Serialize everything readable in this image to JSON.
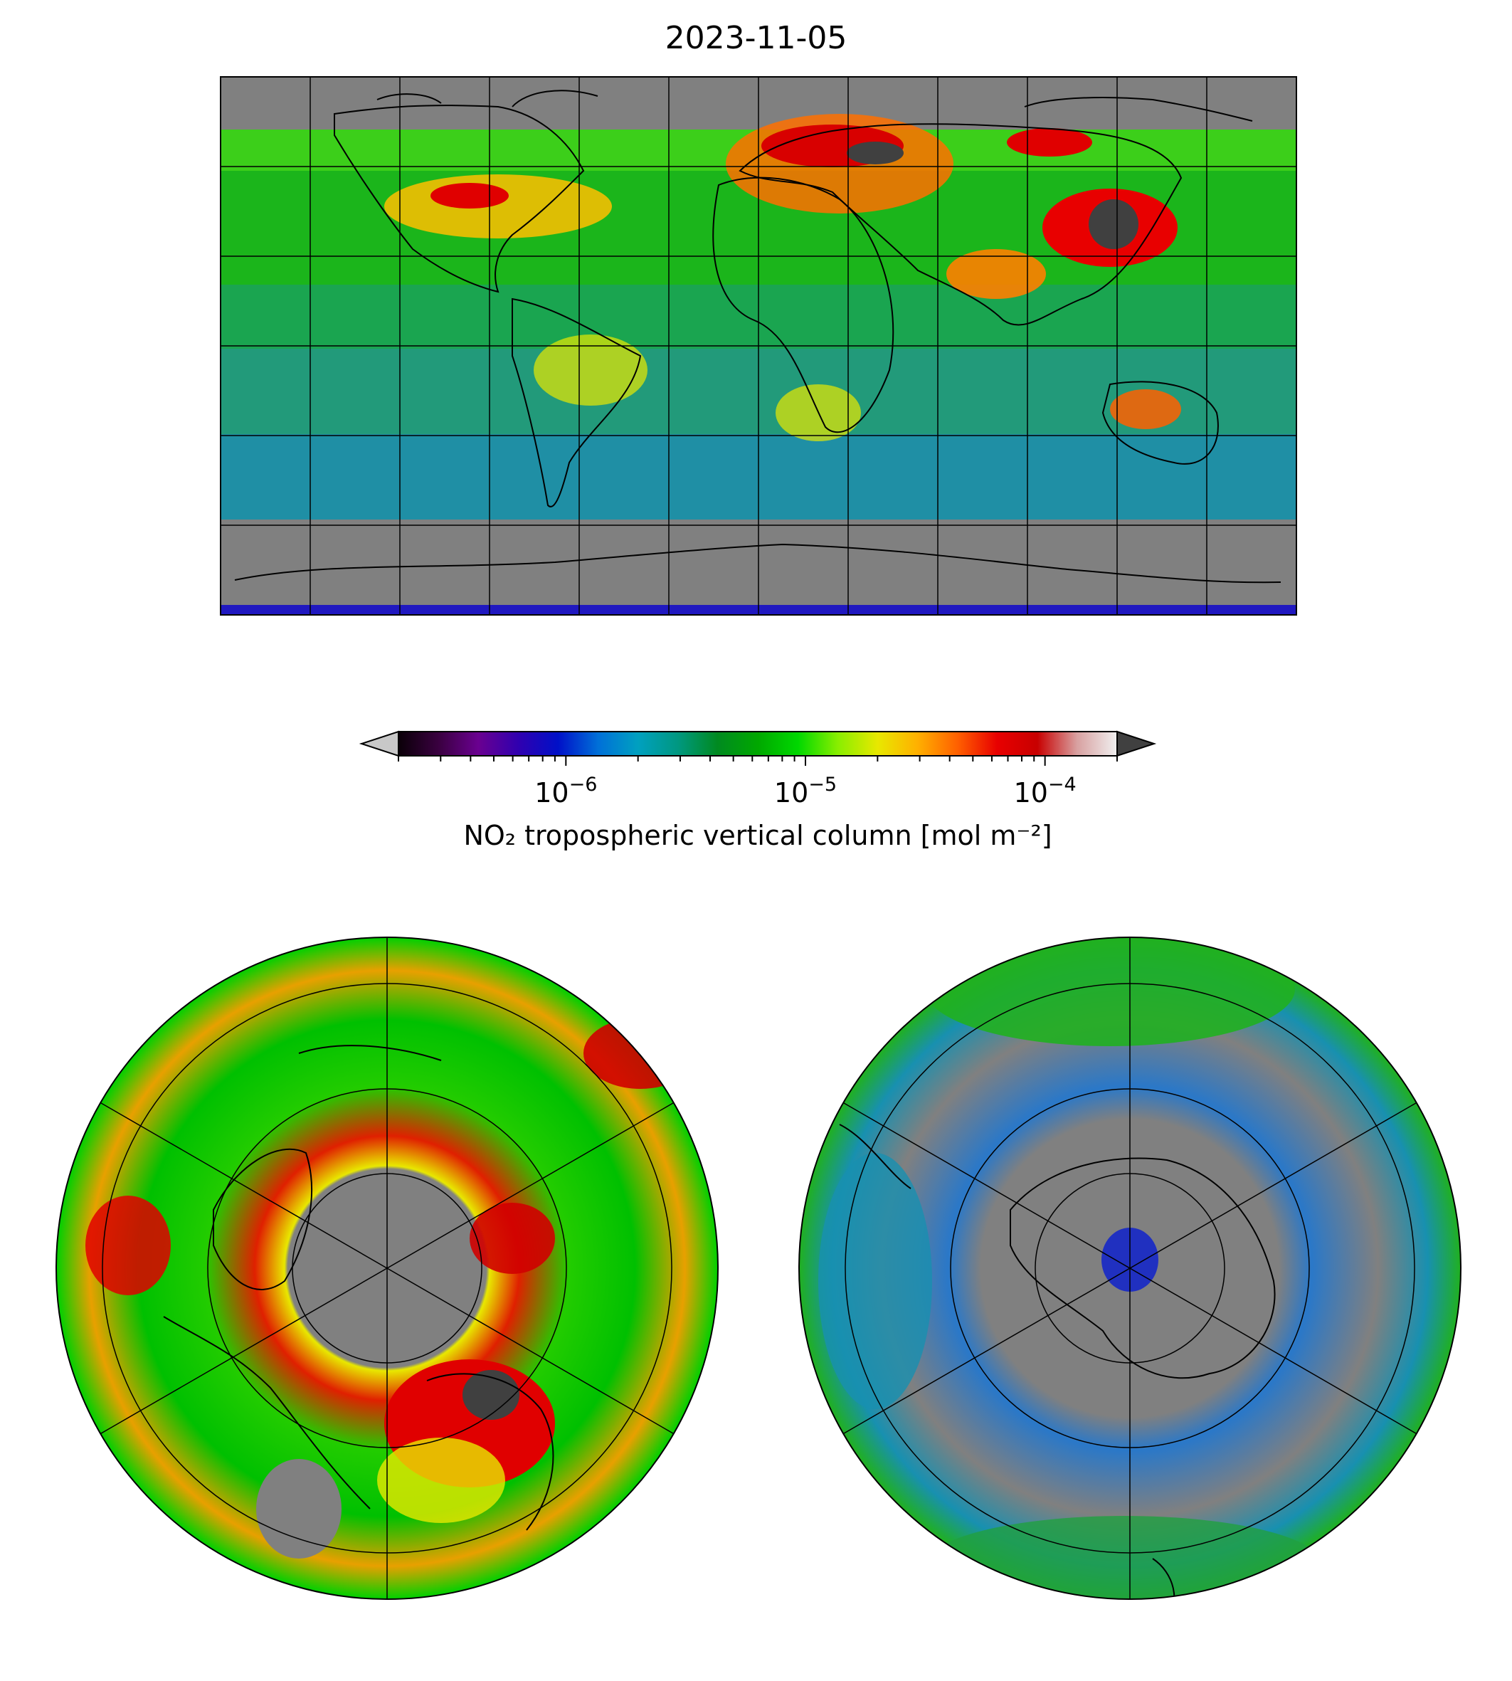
{
  "title": "2023-11-05",
  "colorbar": {
    "label": "NO₂ tropospheric vertical column [mol m⁻²]",
    "scale": "log",
    "range": [
      2e-07,
      0.0002
    ],
    "major_ticks": [
      {
        "value": 1e-06,
        "base": "10",
        "exp": "−6"
      },
      {
        "value": 1e-05,
        "base": "10",
        "exp": "−5"
      },
      {
        "value": 0.0001,
        "base": "10",
        "exp": "−4"
      }
    ],
    "colors": {
      "under": "#c8c8c8",
      "over": "#404040",
      "stops": [
        "#0a0008",
        "#3a0040",
        "#6a0090",
        "#3000b0",
        "#0010c8",
        "#0070d8",
        "#00a0c0",
        "#009880",
        "#008a20",
        "#00a800",
        "#00d800",
        "#88ee00",
        "#e8e800",
        "#ffb000",
        "#ff6000",
        "#e80000",
        "#c80000",
        "#d8a0a0",
        "#f0f0f0"
      ]
    }
  },
  "panels": [
    {
      "name": "global-map",
      "projection": "plate-carree",
      "no_data_color": "#808080"
    },
    {
      "name": "north-polar-map",
      "projection": "north-polar-stereographic",
      "no_data_color": "#808080"
    },
    {
      "name": "south-polar-map",
      "projection": "south-polar-stereographic",
      "no_data_color": "#808080"
    }
  ]
}
